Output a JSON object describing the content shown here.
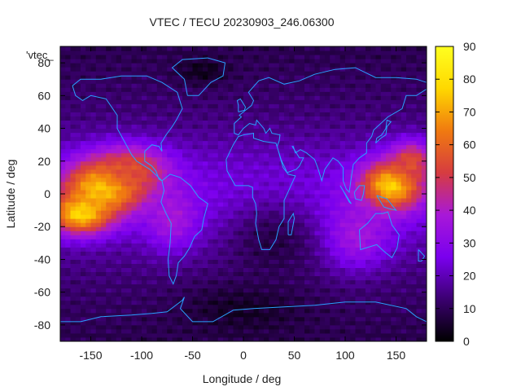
{
  "chart_data": {
    "type": "heatmap",
    "title": "VTEC / TECU 20230903_246.06300",
    "xlabel": "Longitude / deg",
    "ylabel": "Latitude / deg",
    "key_label": "'vtec_",
    "xlim": [
      -180,
      180
    ],
    "ylim": [
      -90,
      90
    ],
    "x_ticks": [
      -150,
      -100,
      -50,
      0,
      50,
      100,
      150
    ],
    "y_ticks": [
      -80,
      -60,
      -40,
      -20,
      0,
      20,
      40,
      60,
      80
    ],
    "colorbar": {
      "min": 0,
      "max": 90,
      "ticks": [
        0,
        10,
        20,
        30,
        40,
        50,
        60,
        70,
        80,
        90
      ]
    },
    "palette": [
      "#000000",
      "#3b0070",
      "#7a00ee",
      "#a818d8",
      "#d63c40",
      "#f07a10",
      "#ffd800",
      "#ffff20"
    ],
    "coastline_color": "#2aa0ff",
    "grid": false,
    "regions": [
      {
        "lon": -135,
        "lat": 5,
        "vtec": 82,
        "spread_lon": 40,
        "spread_lat": 16
      },
      {
        "lon": -160,
        "lat": -12,
        "vtec": 78,
        "spread_lon": 30,
        "spread_lat": 12
      },
      {
        "lon": -110,
        "lat": 15,
        "vtec": 55,
        "spread_lon": 35,
        "spread_lat": 14
      },
      {
        "lon": -70,
        "lat": -15,
        "vtec": 38,
        "spread_lon": 25,
        "spread_lat": 18
      },
      {
        "lon": 145,
        "lat": 5,
        "vtec": 80,
        "spread_lon": 30,
        "spread_lat": 15
      },
      {
        "lon": 165,
        "lat": 20,
        "vtec": 55,
        "spread_lon": 20,
        "spread_lat": 12
      },
      {
        "lon": 110,
        "lat": -25,
        "vtec": 38,
        "spread_lon": 35,
        "spread_lat": 20
      },
      {
        "lon": -40,
        "lat": 75,
        "vtec": 3,
        "spread_lon": 25,
        "spread_lat": 8
      },
      {
        "lon": 0,
        "lat": -70,
        "vtec": 4,
        "spread_lon": 60,
        "spread_lat": 15
      },
      {
        "lon": 30,
        "lat": -30,
        "vtec": 8,
        "spread_lon": 45,
        "spread_lat": 25
      }
    ]
  }
}
